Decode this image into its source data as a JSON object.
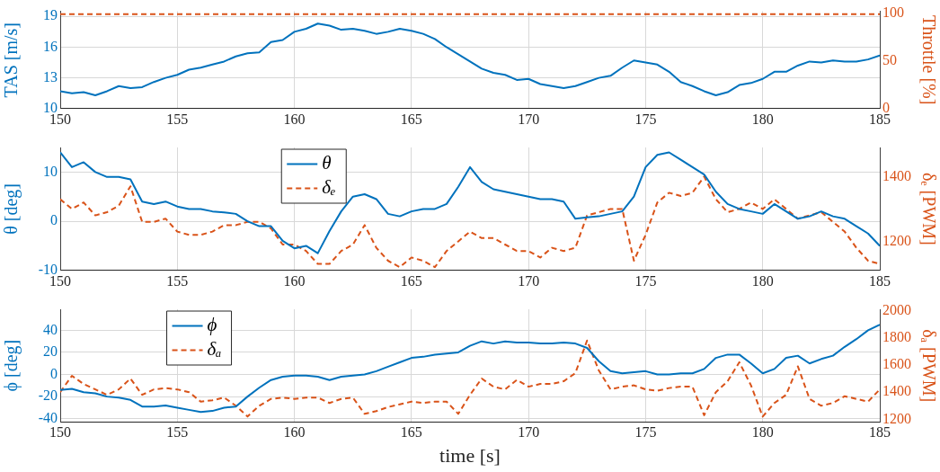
{
  "chart_data": [
    {
      "type": "line",
      "ylabel": "TAS [m/s]",
      "y2label": "Throttle [%]",
      "grid": true,
      "x": [
        150,
        150.5,
        151,
        151.5,
        152,
        152.5,
        153,
        153.5,
        154,
        154.5,
        155,
        155.5,
        156,
        156.5,
        157,
        157.5,
        158,
        158.5,
        159,
        159.5,
        160,
        160.5,
        161,
        161.5,
        162,
        162.5,
        163,
        163.5,
        164,
        164.5,
        165,
        165.5,
        166,
        166.5,
        167,
        167.5,
        168,
        168.5,
        169,
        169.5,
        170,
        170.5,
        171,
        171.5,
        172,
        172.5,
        173,
        173.5,
        174,
        174.5,
        175,
        175.5,
        176,
        176.5,
        177,
        177.5,
        178,
        178.5,
        179,
        179.5,
        180,
        180.5,
        181,
        181.5,
        182,
        182.5,
        183,
        183.5,
        184,
        184.5,
        185
      ],
      "xlim": [
        150,
        185
      ],
      "xticks": [
        150,
        155,
        160,
        165,
        170,
        175,
        180,
        185
      ],
      "ylim": [
        10,
        19.5
      ],
      "yticks": [
        10,
        13,
        16,
        19
      ],
      "y2lim": [
        0,
        102
      ],
      "y2ticks": [
        0,
        50,
        100
      ],
      "series": [
        {
          "color": "#0072bd",
          "line_style": "solid",
          "values": [
            11.7,
            11.5,
            11.6,
            11.3,
            11.7,
            12.2,
            12.0,
            12.1,
            12.6,
            13.0,
            13.3,
            13.8,
            14.0,
            14.3,
            14.6,
            15.1,
            15.4,
            15.5,
            16.5,
            16.7,
            17.5,
            17.8,
            18.3,
            18.1,
            17.7,
            17.8,
            17.6,
            17.3,
            17.5,
            17.8,
            17.6,
            17.3,
            16.8,
            16.0,
            15.3,
            14.6,
            13.9,
            13.5,
            13.3,
            12.8,
            12.9,
            12.4,
            12.2,
            12.0,
            12.2,
            12.6,
            13.0,
            13.2,
            14.0,
            14.7,
            14.5,
            14.3,
            13.6,
            12.6,
            12.2,
            11.7,
            11.3,
            11.6,
            12.3,
            12.5,
            12.9,
            13.6,
            13.6,
            14.2,
            14.6,
            14.5,
            14.7,
            14.6,
            14.6,
            14.8,
            15.2
          ]
        },
        {
          "color": "#d95319",
          "line_style": "dashed",
          "axis": "y2",
          "values": [
            99,
            99,
            99,
            99,
            99,
            99,
            99,
            99,
            99,
            99,
            99,
            99,
            99,
            99,
            99,
            99,
            99,
            99,
            99,
            99,
            99,
            99,
            99,
            99,
            99,
            99,
            99,
            99,
            99,
            99,
            99,
            99,
            99,
            99,
            99,
            99,
            99,
            99,
            99,
            99,
            99,
            99,
            99,
            99,
            99,
            99,
            99,
            99,
            99,
            99,
            99,
            99,
            99,
            99,
            99,
            99,
            99,
            99,
            99,
            99,
            99,
            99,
            99,
            99,
            99,
            99,
            99,
            99,
            99,
            99,
            99
          ]
        }
      ]
    },
    {
      "type": "line",
      "ylabel": "θ [deg]",
      "y2label": "δₑ [PWM]",
      "grid": true,
      "legend": "top left",
      "x": [
        150,
        150.5,
        151,
        151.5,
        152,
        152.5,
        153,
        153.5,
        154,
        154.5,
        155,
        155.5,
        156,
        156.5,
        157,
        157.5,
        158,
        158.5,
        159,
        159.5,
        160,
        160.5,
        161,
        161.5,
        162,
        162.5,
        163,
        163.5,
        164,
        164.5,
        165,
        165.5,
        166,
        166.5,
        167,
        167.5,
        168,
        168.5,
        169,
        169.5,
        170,
        170.5,
        171,
        171.5,
        172,
        172.5,
        173,
        173.5,
        174,
        174.5,
        175,
        175.5,
        176,
        176.5,
        177,
        177.5,
        178,
        178.5,
        179,
        179.5,
        180,
        180.5,
        181,
        181.5,
        182,
        182.5,
        183,
        183.5,
        184,
        184.5,
        185
      ],
      "xlim": [
        150,
        185
      ],
      "xticks": [
        150,
        155,
        160,
        165,
        170,
        175,
        180,
        185
      ],
      "ylim": [
        -10,
        15
      ],
      "yticks": [
        -10,
        0,
        10
      ],
      "y2lim": [
        1110,
        1490
      ],
      "y2ticks": [
        1200,
        1400
      ],
      "series": [
        {
          "name": "θ",
          "color": "#0072bd",
          "line_style": "solid",
          "values": [
            14,
            11,
            12,
            10,
            9,
            9,
            8.5,
            4,
            3.5,
            4,
            3,
            2.5,
            2.5,
            2,
            1.8,
            1.5,
            0,
            -1,
            -1,
            -4,
            -5.5,
            -5,
            -6.5,
            -2,
            2,
            5,
            5.5,
            4.5,
            1.5,
            1,
            2,
            2.5,
            2.5,
            3.5,
            7,
            11,
            8,
            6.5,
            6,
            5.5,
            5,
            4.5,
            4.5,
            4,
            0.5,
            0.8,
            1,
            1.5,
            2,
            5,
            11,
            13.5,
            14,
            12.5,
            11,
            9.5,
            6,
            3.5,
            2.5,
            2,
            1.5,
            3.5,
            2,
            0.5,
            1,
            2,
            1,
            0.5,
            -1,
            -2.5,
            -5
          ]
        },
        {
          "name": "δₑ",
          "color": "#d95319",
          "line_style": "dashed",
          "axis": "y2",
          "values": [
            1330,
            1300,
            1320,
            1280,
            1290,
            1310,
            1370,
            1260,
            1260,
            1270,
            1230,
            1220,
            1220,
            1230,
            1250,
            1250,
            1260,
            1260,
            1240,
            1190,
            1190,
            1170,
            1130,
            1130,
            1170,
            1190,
            1250,
            1180,
            1140,
            1120,
            1150,
            1140,
            1120,
            1170,
            1200,
            1230,
            1210,
            1210,
            1190,
            1170,
            1170,
            1150,
            1180,
            1170,
            1180,
            1280,
            1290,
            1300,
            1300,
            1140,
            1220,
            1320,
            1350,
            1340,
            1350,
            1400,
            1330,
            1290,
            1300,
            1320,
            1300,
            1330,
            1300,
            1270,
            1280,
            1290,
            1260,
            1230,
            1180,
            1140,
            1130
          ]
        }
      ]
    },
    {
      "type": "line",
      "xlabel": "time [s]",
      "ylabel": "ϕ [deg]",
      "y2label": "δₐ [PWM]",
      "grid": true,
      "legend": "top left",
      "x": [
        150,
        150.5,
        151,
        151.5,
        152,
        152.5,
        153,
        153.5,
        154,
        154.5,
        155,
        155.5,
        156,
        156.5,
        157,
        157.5,
        158,
        158.5,
        159,
        159.5,
        160,
        160.5,
        161,
        161.5,
        162,
        162.5,
        163,
        163.5,
        164,
        164.5,
        165,
        165.5,
        166,
        166.5,
        167,
        167.5,
        168,
        168.5,
        169,
        169.5,
        170,
        170.5,
        171,
        171.5,
        172,
        172.5,
        173,
        173.5,
        174,
        174.5,
        175,
        175.5,
        176,
        176.5,
        177,
        177.5,
        178,
        178.5,
        179,
        179.5,
        180,
        180.5,
        181,
        181.5,
        182,
        182.5,
        183,
        183.5,
        184,
        184.5,
        185
      ],
      "xlim": [
        150,
        185
      ],
      "xticks": [
        150,
        155,
        160,
        165,
        170,
        175,
        180,
        185
      ],
      "ylim": [
        -43,
        59
      ],
      "yticks": [
        -40,
        -20,
        0,
        20,
        40
      ],
      "y2lim": [
        1180,
        2010
      ],
      "y2ticks": [
        1200,
        1400,
        1600,
        1800,
        2000
      ],
      "series": [
        {
          "name": "ϕ",
          "color": "#0072bd",
          "line_style": "solid",
          "values": [
            -14,
            -13,
            -16,
            -17,
            -20,
            -21,
            -23,
            -29,
            -29,
            -28,
            -30,
            -32,
            -34,
            -33,
            -30,
            -29,
            -20,
            -12,
            -5,
            -2,
            -1,
            -1,
            -2,
            -5,
            -2,
            -1,
            0,
            3,
            7,
            11,
            15,
            16,
            18,
            19,
            20,
            26,
            30,
            28,
            30,
            29,
            29,
            28,
            28,
            29,
            28,
            24,
            12,
            3,
            1,
            2,
            3,
            0,
            0,
            1,
            1,
            5,
            15,
            18,
            18,
            10,
            1,
            5,
            15,
            17,
            10,
            14,
            17,
            25,
            32,
            40,
            45
          ]
        },
        {
          "name": "δₐ",
          "color": "#d95319",
          "line_style": "dashed",
          "axis": "y2",
          "values": [
            1400,
            1520,
            1460,
            1420,
            1380,
            1420,
            1500,
            1380,
            1420,
            1430,
            1420,
            1400,
            1330,
            1340,
            1360,
            1300,
            1220,
            1300,
            1350,
            1360,
            1350,
            1360,
            1360,
            1320,
            1350,
            1360,
            1240,
            1260,
            1290,
            1310,
            1330,
            1320,
            1330,
            1330,
            1240,
            1380,
            1500,
            1440,
            1420,
            1490,
            1440,
            1460,
            1460,
            1480,
            1540,
            1780,
            1560,
            1420,
            1440,
            1450,
            1420,
            1410,
            1430,
            1440,
            1440,
            1230,
            1400,
            1480,
            1620,
            1450,
            1220,
            1320,
            1380,
            1590,
            1350,
            1300,
            1320,
            1370,
            1350,
            1330,
            1420
          ]
        }
      ]
    }
  ]
}
